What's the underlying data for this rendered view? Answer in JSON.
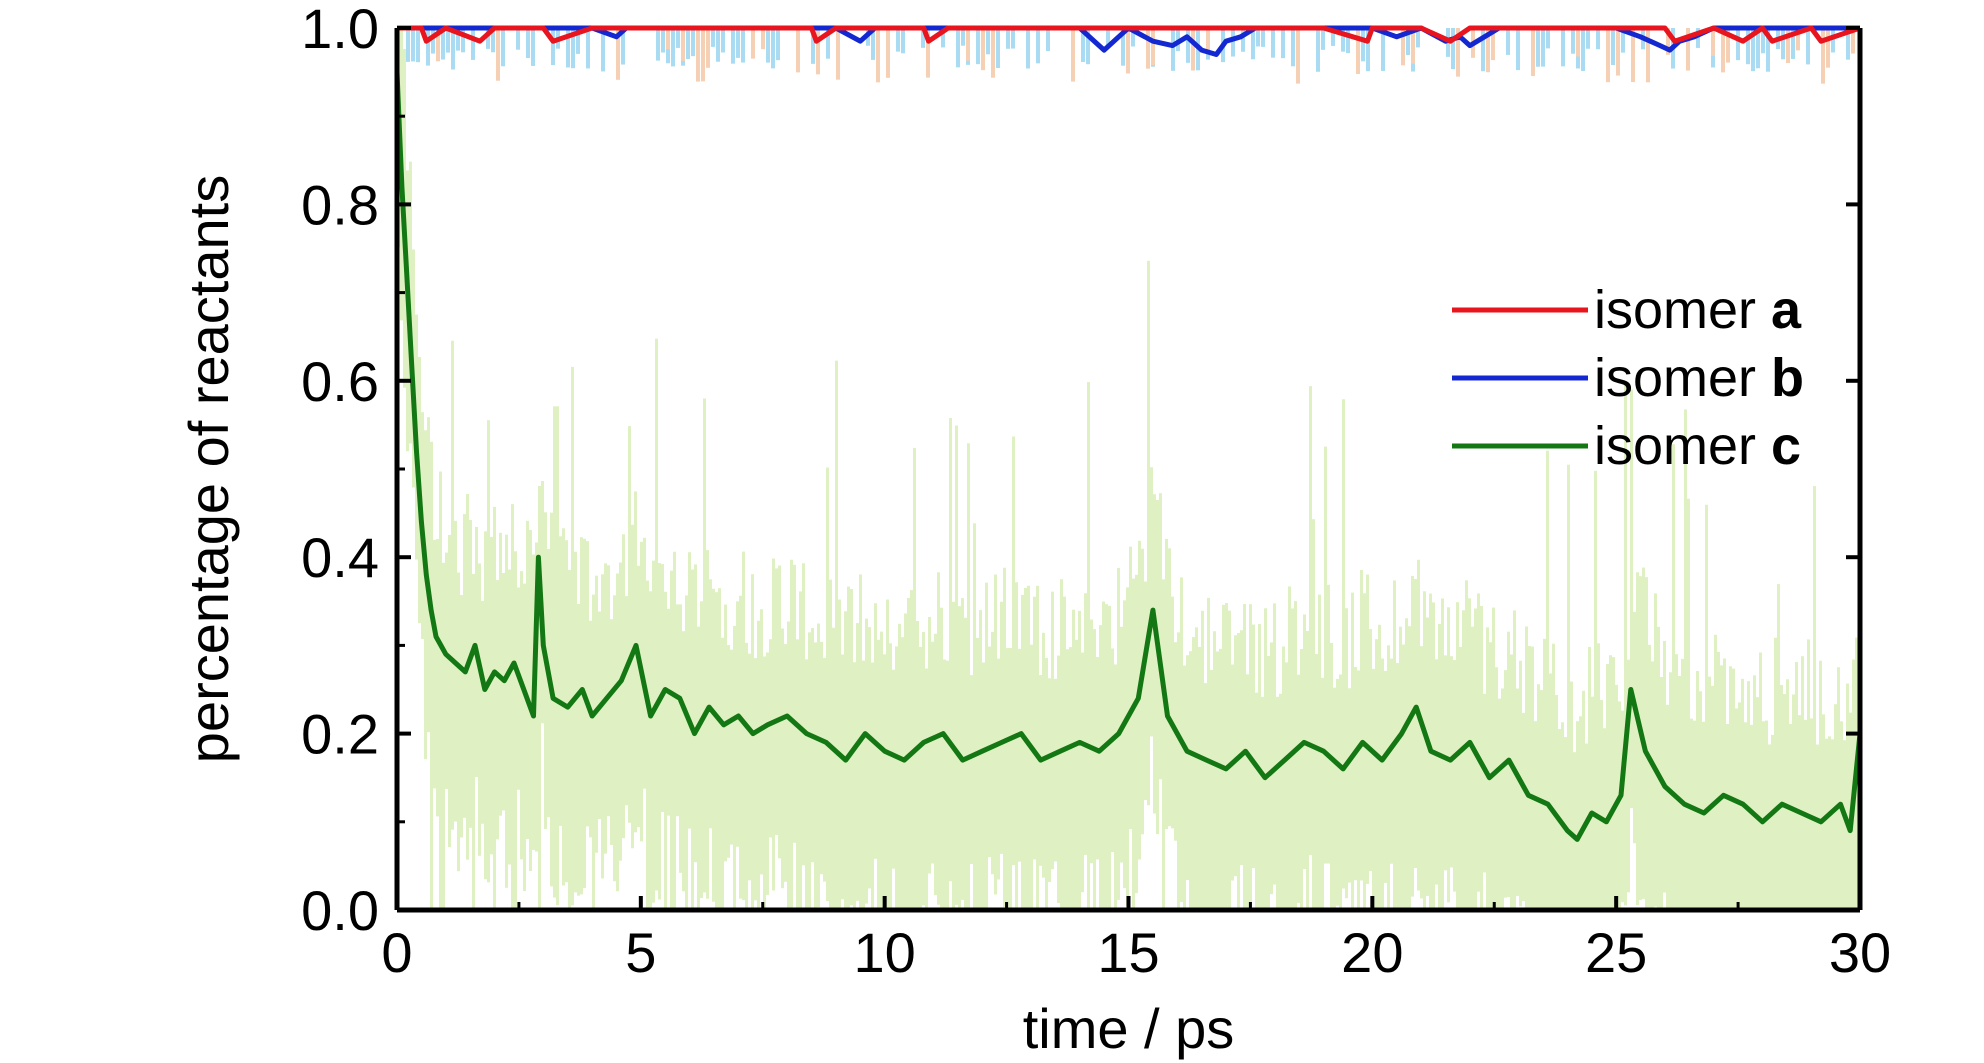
{
  "chart_data": {
    "type": "line",
    "title": "",
    "xlabel": "time / ps",
    "ylabel": "percentage of reactants",
    "xlim": [
      0,
      30
    ],
    "ylim": [
      0.0,
      1.0
    ],
    "x_ticks": [
      0,
      5,
      10,
      15,
      20,
      25,
      30
    ],
    "x_tick_labels": [
      "0",
      "5",
      "10",
      "15",
      "20",
      "25",
      "30"
    ],
    "y_ticks": [
      0.0,
      0.2,
      0.4,
      0.6,
      0.8,
      1.0
    ],
    "y_tick_labels": [
      "0.0",
      "0.2",
      "0.4",
      "0.6",
      "0.8",
      "1.0"
    ],
    "grid": false,
    "legend_position": "right",
    "legend": [
      {
        "prefix": "isomer ",
        "letter": "a",
        "color": "#e8141e"
      },
      {
        "prefix": "isomer ",
        "letter": "b",
        "color": "#1428d2"
      },
      {
        "prefix": "isomer ",
        "letter": "c",
        "color": "#137813"
      }
    ],
    "band_colors": {
      "a": "#f6d0b4",
      "b": "#a9dcf2",
      "c": "#dff1c2"
    },
    "series": [
      {
        "name": "isomer a",
        "color": "#e8141e",
        "x": [
          0,
          0.5,
          0.6,
          1.0,
          1.7,
          2.0,
          3.0,
          3.2,
          4.0,
          5.0,
          6.0,
          7.0,
          8.5,
          8.6,
          9.0,
          10.0,
          10.8,
          10.9,
          11.3,
          12.0,
          13.0,
          14.0,
          15.0,
          16.0,
          17.0,
          18.0,
          19.0,
          19.9,
          20.0,
          21.0,
          21.6,
          22.0,
          23.0,
          24.0,
          24.8,
          25.0,
          26.0,
          26.2,
          27.0,
          27.6,
          28.0,
          28.2,
          29.0,
          29.2,
          30.0
        ],
        "y": [
          1.0,
          1.0,
          0.985,
          1.0,
          0.985,
          1.0,
          1.0,
          0.985,
          1.0,
          1.0,
          1.0,
          1.0,
          1.0,
          0.985,
          1.0,
          1.0,
          1.0,
          0.985,
          1.0,
          1.0,
          1.0,
          1.0,
          1.0,
          1.0,
          1.0,
          1.0,
          1.0,
          0.985,
          1.0,
          1.0,
          0.985,
          1.0,
          1.0,
          1.0,
          1.0,
          1.0,
          1.0,
          0.985,
          1.0,
          0.985,
          1.0,
          0.985,
          1.0,
          0.985,
          1.0
        ]
      },
      {
        "name": "isomer b",
        "color": "#1428d2",
        "x": [
          0,
          1.0,
          2.0,
          3.0,
          4.0,
          4.5,
          4.7,
          5.0,
          6.0,
          7.0,
          8.0,
          9.0,
          9.5,
          9.8,
          10.0,
          11.0,
          12.0,
          13.0,
          14.0,
          14.5,
          14.8,
          15.0,
          15.5,
          15.9,
          16.2,
          16.5,
          16.8,
          17.0,
          17.3,
          17.6,
          18.0,
          19.0,
          20.0,
          20.5,
          21.0,
          21.5,
          21.8,
          22.0,
          22.3,
          22.6,
          23.0,
          24.0,
          25.0,
          25.5,
          25.9,
          26.1,
          26.3,
          26.6,
          27.0,
          28.0,
          29.0,
          30.0
        ],
        "y": [
          1.0,
          1.0,
          1.0,
          1.0,
          1.0,
          0.99,
          1.0,
          1.0,
          1.0,
          1.0,
          1.0,
          1.0,
          0.985,
          1.0,
          1.0,
          1.0,
          1.0,
          1.0,
          1.0,
          0.975,
          0.99,
          1.0,
          0.985,
          0.98,
          0.99,
          0.975,
          0.97,
          0.985,
          0.99,
          1.0,
          1.0,
          1.0,
          1.0,
          0.99,
          1.0,
          0.985,
          0.99,
          0.98,
          0.99,
          1.0,
          1.0,
          1.0,
          1.0,
          0.99,
          0.98,
          0.975,
          0.985,
          0.99,
          1.0,
          1.0,
          1.0,
          1.0
        ]
      },
      {
        "name": "isomer c",
        "color": "#137813",
        "x": [
          0,
          0.1,
          0.2,
          0.3,
          0.4,
          0.5,
          0.6,
          0.7,
          0.8,
          0.9,
          1.0,
          1.2,
          1.4,
          1.6,
          1.8,
          2.0,
          2.2,
          2.4,
          2.6,
          2.8,
          2.9,
          3.0,
          3.2,
          3.5,
          3.8,
          4.0,
          4.3,
          4.6,
          4.9,
          5.2,
          5.5,
          5.8,
          6.1,
          6.4,
          6.7,
          7.0,
          7.3,
          7.6,
          8.0,
          8.4,
          8.8,
          9.2,
          9.6,
          10.0,
          10.4,
          10.8,
          11.2,
          11.6,
          12.0,
          12.4,
          12.8,
          13.2,
          13.6,
          14.0,
          14.4,
          14.8,
          15.2,
          15.5,
          15.8,
          16.2,
          16.6,
          17.0,
          17.4,
          17.8,
          18.2,
          18.6,
          19.0,
          19.4,
          19.8,
          20.2,
          20.6,
          20.9,
          21.2,
          21.6,
          22.0,
          22.4,
          22.8,
          23.2,
          23.6,
          24.0,
          24.2,
          24.5,
          24.8,
          25.1,
          25.3,
          25.6,
          26.0,
          26.4,
          26.8,
          27.2,
          27.6,
          28.0,
          28.4,
          28.8,
          29.2,
          29.6,
          29.8,
          30.0
        ],
        "y": [
          0.95,
          0.82,
          0.72,
          0.62,
          0.52,
          0.44,
          0.38,
          0.34,
          0.31,
          0.3,
          0.29,
          0.28,
          0.27,
          0.3,
          0.25,
          0.27,
          0.26,
          0.28,
          0.25,
          0.22,
          0.4,
          0.3,
          0.24,
          0.23,
          0.25,
          0.22,
          0.24,
          0.26,
          0.3,
          0.22,
          0.25,
          0.24,
          0.2,
          0.23,
          0.21,
          0.22,
          0.2,
          0.21,
          0.22,
          0.2,
          0.19,
          0.17,
          0.2,
          0.18,
          0.17,
          0.19,
          0.2,
          0.17,
          0.18,
          0.19,
          0.2,
          0.17,
          0.18,
          0.19,
          0.18,
          0.2,
          0.24,
          0.34,
          0.22,
          0.18,
          0.17,
          0.16,
          0.18,
          0.15,
          0.17,
          0.19,
          0.18,
          0.16,
          0.19,
          0.17,
          0.2,
          0.23,
          0.18,
          0.17,
          0.19,
          0.15,
          0.17,
          0.13,
          0.12,
          0.09,
          0.08,
          0.11,
          0.1,
          0.13,
          0.25,
          0.18,
          0.14,
          0.12,
          0.11,
          0.13,
          0.12,
          0.1,
          0.12,
          0.11,
          0.1,
          0.12,
          0.09,
          0.2
        ]
      }
    ]
  }
}
